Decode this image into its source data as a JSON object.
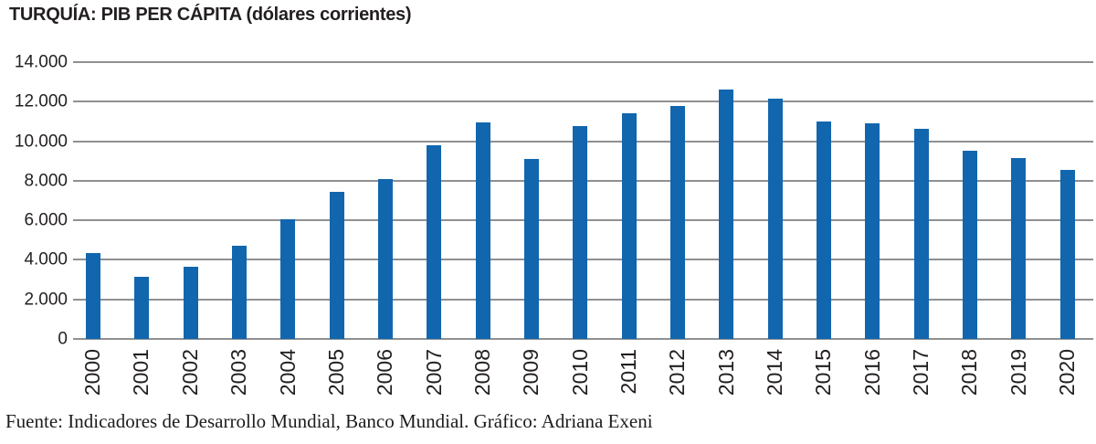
{
  "footer": {
    "text": "Fuente: Indicadores de Desarrollo Mundial, Banco Mundial. Gráfico: Adriana Exeni"
  },
  "chart_data": {
    "type": "bar",
    "title": "TURQUÍA: PIB PER CÁPITA (dólares corrientes)",
    "xlabel": "",
    "ylabel": "",
    "categories": [
      "2000",
      "2001",
      "2002",
      "2003",
      "2004",
      "2005",
      "2006",
      "2007",
      "2008",
      "2009",
      "2010",
      "2011",
      "2012",
      "2013",
      "2014",
      "2015",
      "2016",
      "2017",
      "2018",
      "2019",
      "2020"
    ],
    "values": [
      4337,
      3120,
      3660,
      4718,
      6040,
      7456,
      8102,
      9791,
      10941,
      9103,
      10743,
      11421,
      11795,
      12615,
      12158,
      11006,
      10895,
      10616,
      9508,
      9127,
      8536
    ],
    "ylim": [
      0,
      14000
    ],
    "y_ticks": [
      {
        "label": "14.000",
        "value": 14000
      },
      {
        "label": "12.000",
        "value": 12000
      },
      {
        "label": "10.000",
        "value": 10000
      },
      {
        "label": "8.000",
        "value": 8000
      },
      {
        "label": "6.000",
        "value": 6000
      },
      {
        "label": "4.000",
        "value": 4000
      },
      {
        "label": "2.000",
        "value": 2000
      },
      {
        "label": "0",
        "value": 0
      }
    ],
    "grid": "horizontal",
    "legend": "none",
    "bar_color": "#1166ae",
    "gridline_color": "#8e9092",
    "text_color": "#231f20"
  }
}
